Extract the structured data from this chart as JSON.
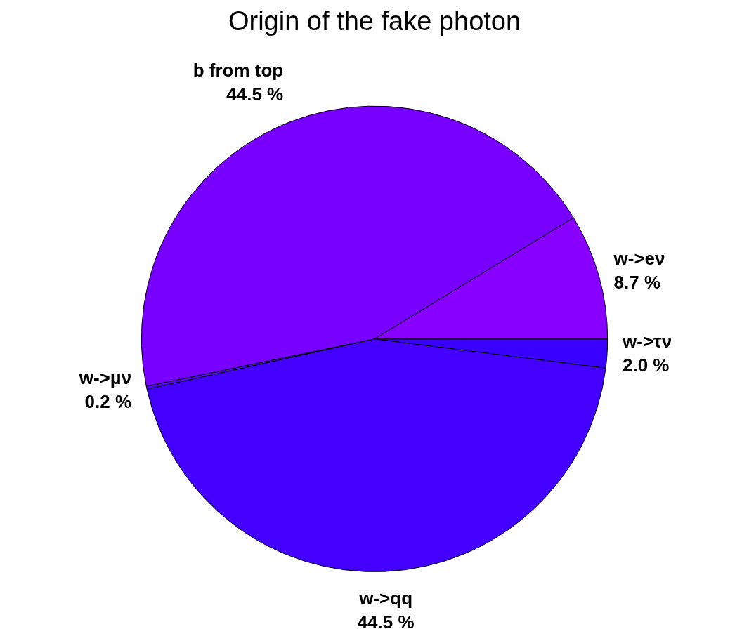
{
  "chart_data": {
    "type": "pie",
    "title": "Origin of the fake photon",
    "categories": [
      "w->τν",
      "w->qq",
      "w->μν",
      "b from top",
      "w->eν"
    ],
    "values": [
      2.0,
      44.5,
      0.2,
      44.5,
      8.7
    ],
    "value_labels": [
      "2.0 %",
      "44.5 %",
      "0.2 %",
      "44.5 %",
      "8.7 %"
    ],
    "colors": [
      "#3a00ff",
      "#4400ff",
      "#5a00ff",
      "#7700ff",
      "#8800ff"
    ],
    "legend": false
  }
}
